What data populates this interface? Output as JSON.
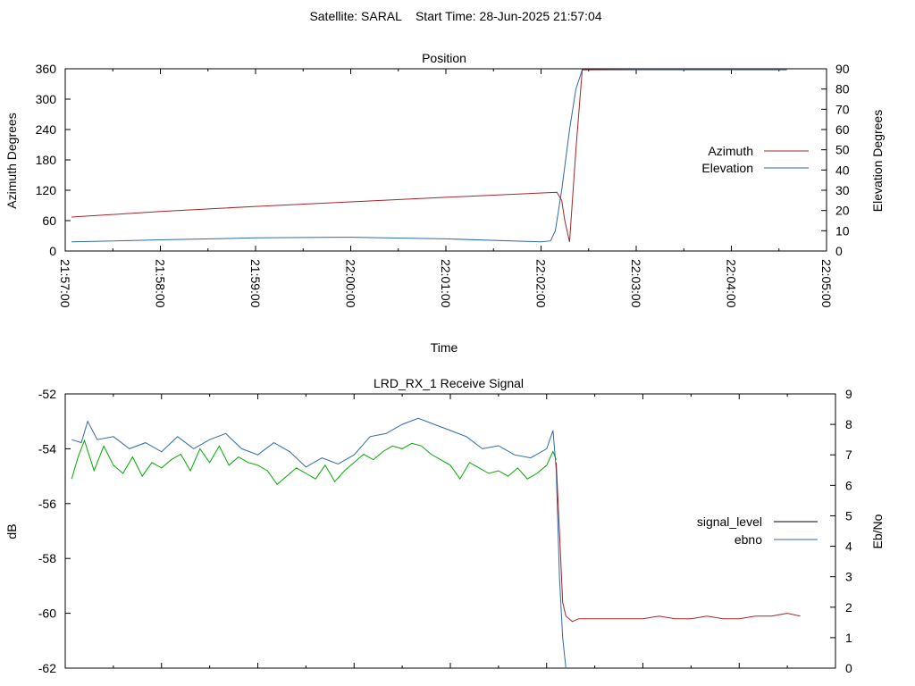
{
  "header": {
    "title": "Satellite: SARAL    Start Time: 28-Jun-2025 21:57:04"
  },
  "colors": {
    "azimuth": "#a0262a",
    "elevation": "#2f6aa8",
    "signal_level": "#000000",
    "ebno": "#2f6aa8",
    "green_trace": "#00aa00",
    "red_trace": "#a0262a",
    "axis": "#000000"
  },
  "chart_data": [
    {
      "type": "line",
      "title": "Position",
      "xlabel": "Time",
      "ylabel": "Azimuth Degrees",
      "y2label": "Elevation Degrees",
      "xlim": [
        "21:57:00",
        "22:05:00"
      ],
      "ylim": [
        0,
        360
      ],
      "y2lim": [
        0,
        90
      ],
      "xticks": [
        "21:57:00",
        "21:58:00",
        "21:59:00",
        "22:00:00",
        "22:01:00",
        "22:02:00",
        "22:03:00",
        "22:04:00",
        "22:05:00"
      ],
      "yticks": [
        "0",
        "60",
        "120",
        "180",
        "240",
        "300",
        "360"
      ],
      "y2ticks": [
        "0",
        "10",
        "20",
        "30",
        "40",
        "50",
        "60",
        "70",
        "80",
        "90"
      ],
      "legend_position": "right",
      "series": [
        {
          "name": "Azimuth",
          "axis": "y",
          "x": [
            "21:57:04",
            "21:58:00",
            "21:59:00",
            "22:00:00",
            "22:01:00",
            "22:02:10",
            "22:02:13",
            "22:02:15",
            "22:02:18",
            "22:02:22",
            "22:02:26",
            "22:03:00",
            "22:04:00",
            "22:04:35"
          ],
          "values": [
            67,
            78,
            88,
            97,
            106,
            116,
            100,
            60,
            18,
            200,
            358,
            359,
            359,
            359
          ]
        },
        {
          "name": "Elevation",
          "axis": "y2",
          "x": [
            "21:57:04",
            "21:58:00",
            "21:59:00",
            "22:00:00",
            "22:01:00",
            "22:02:00",
            "22:02:06",
            "22:02:09",
            "22:02:13",
            "22:02:18",
            "22:02:22",
            "22:02:26",
            "22:03:00",
            "22:04:00",
            "22:04:35"
          ],
          "values": [
            4.5,
            5.5,
            6.5,
            6.8,
            6.0,
            4.5,
            5.0,
            10,
            30,
            60,
            80,
            89.5,
            89.5,
            89.5,
            89.5
          ]
        }
      ]
    },
    {
      "type": "line",
      "title": "LRD_RX_1 Receive Signal",
      "xlabel": "",
      "ylabel": "dB",
      "y2label": "Eb/No",
      "xlim": [
        "21:57:00",
        "22:05:00"
      ],
      "ylim": [
        -62,
        -52
      ],
      "y2lim": [
        0,
        9
      ],
      "yticks": [
        "-62",
        "-60",
        "-58",
        "-56",
        "-54",
        "-52"
      ],
      "y2ticks": [
        "0",
        "1",
        "2",
        "3",
        "4",
        "5",
        "6",
        "7",
        "8",
        "9"
      ],
      "legend_position": "right",
      "legend": [
        {
          "name": "signal_level",
          "color": "#000000"
        },
        {
          "name": "ebno",
          "color": "#2f6aa8"
        }
      ],
      "series": [
        {
          "name": "",
          "axis": "y",
          "color": "#00aa00",
          "x": [
            "21:57:04",
            "21:57:08",
            "21:57:12",
            "21:57:18",
            "21:57:24",
            "21:57:30",
            "21:57:36",
            "21:57:42",
            "21:57:48",
            "21:57:54",
            "21:58:00",
            "21:58:06",
            "21:58:12",
            "21:58:18",
            "21:58:24",
            "21:58:30",
            "21:58:36",
            "21:58:42",
            "21:58:48",
            "21:58:54",
            "21:59:00",
            "21:59:06",
            "21:59:12",
            "21:59:18",
            "21:59:24",
            "21:59:30",
            "21:59:36",
            "21:59:42",
            "21:59:48",
            "21:59:54",
            "22:00:00",
            "22:00:06",
            "22:00:12",
            "22:00:18",
            "22:00:24",
            "22:00:30",
            "22:00:36",
            "22:00:42",
            "22:00:48",
            "22:00:54",
            "22:01:00",
            "22:01:06",
            "22:01:12",
            "22:01:18",
            "22:01:24",
            "22:01:30",
            "22:01:36",
            "22:01:42",
            "22:01:48",
            "22:01:54",
            "22:02:00",
            "22:02:04",
            "22:02:06"
          ],
          "values": [
            -55.1,
            -54.3,
            -53.7,
            -54.8,
            -53.9,
            -54.6,
            -54.9,
            -54.3,
            -55.0,
            -54.5,
            -54.7,
            -54.4,
            -54.2,
            -54.8,
            -54.0,
            -54.5,
            -53.9,
            -54.6,
            -54.3,
            -54.5,
            -54.6,
            -54.8,
            -55.3,
            -55.0,
            -54.7,
            -54.9,
            -55.1,
            -54.6,
            -55.2,
            -54.8,
            -54.5,
            -54.2,
            -54.4,
            -54.1,
            -53.9,
            -54.0,
            -53.8,
            -53.9,
            -54.2,
            -54.4,
            -54.6,
            -55.1,
            -54.5,
            -54.7,
            -54.9,
            -54.8,
            -55.0,
            -54.7,
            -55.1,
            -54.9,
            -54.6,
            -54.1,
            -54.4
          ]
        },
        {
          "name": "ebno",
          "axis": "y2",
          "color": "#2f6aa8",
          "x": [
            "21:57:04",
            "21:57:10",
            "21:57:14",
            "21:57:20",
            "21:57:30",
            "21:57:40",
            "21:57:50",
            "21:58:00",
            "21:58:10",
            "21:58:20",
            "21:58:30",
            "21:58:40",
            "21:58:50",
            "21:59:00",
            "21:59:10",
            "21:59:20",
            "21:59:30",
            "21:59:40",
            "21:59:50",
            "22:00:00",
            "22:00:10",
            "22:00:20",
            "22:00:30",
            "22:00:40",
            "22:00:50",
            "22:01:00",
            "22:01:10",
            "22:01:20",
            "22:01:30",
            "22:01:40",
            "22:01:50",
            "22:02:00",
            "22:02:04",
            "22:02:06",
            "22:02:08",
            "22:02:10",
            "22:02:12"
          ],
          "values": [
            7.5,
            7.4,
            8.1,
            7.5,
            7.6,
            7.2,
            7.4,
            7.1,
            7.6,
            7.2,
            7.5,
            7.7,
            7.2,
            7.0,
            7.4,
            7.1,
            6.6,
            6.9,
            6.7,
            7.0,
            7.6,
            7.7,
            8.0,
            8.2,
            8.0,
            7.8,
            7.6,
            7.2,
            7.3,
            7.0,
            6.9,
            7.2,
            7.8,
            6.5,
            3.0,
            1.0,
            0.0
          ]
        },
        {
          "name": "",
          "axis": "y",
          "color": "#a0262a",
          "x": [
            "22:02:06",
            "22:02:08",
            "22:02:10",
            "22:02:12",
            "22:02:16",
            "22:02:20",
            "22:02:30",
            "22:02:40",
            "22:02:50",
            "22:03:00",
            "22:03:10",
            "22:03:20",
            "22:03:30",
            "22:03:40",
            "22:03:50",
            "22:04:00",
            "22:04:10",
            "22:04:20",
            "22:04:30",
            "22:04:38"
          ],
          "values": [
            -54.5,
            -57.0,
            -59.6,
            -60.1,
            -60.3,
            -60.2,
            -60.2,
            -60.2,
            -60.2,
            -60.2,
            -60.1,
            -60.2,
            -60.2,
            -60.1,
            -60.2,
            -60.2,
            -60.1,
            -60.1,
            -60.0,
            -60.1
          ]
        }
      ]
    }
  ]
}
